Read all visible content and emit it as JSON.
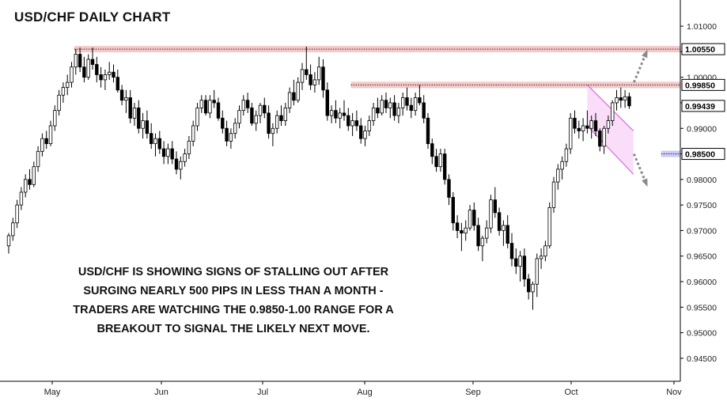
{
  "chart_data": {
    "type": "candlestick",
    "title": "USD/CHF DAILY CHART",
    "x_tick_labels": [
      "May",
      "Jun",
      "Jul",
      "Aug",
      "Sep",
      "Oct",
      "Nov"
    ],
    "y_tick_labels": [
      "0.94500",
      "0.95000",
      "0.95500",
      "0.96000",
      "0.96500",
      "0.97000",
      "0.97500",
      "0.98000",
      "0.98500",
      "0.99000",
      "0.99500",
      "1.00000",
      "1.00500",
      "1.01000"
    ],
    "ylim": [
      0.9405,
      1.0145
    ],
    "grid": false,
    "price_labels": [
      {
        "value": 1.0055,
        "label": "1.00550",
        "style": "resistance"
      },
      {
        "value": 0.9985,
        "label": "0.99850",
        "style": "resistance"
      },
      {
        "value": 0.99439,
        "label": "0.99439",
        "style": "last"
      },
      {
        "value": 0.985,
        "label": "0.98500",
        "style": "support"
      }
    ],
    "horizontal_zones": [
      {
        "value": 1.0055,
        "color": "#f2b6b6",
        "start_bar": 16
      },
      {
        "value": 0.9985,
        "color": "#f2b6b6",
        "start_bar": 82
      },
      {
        "value": 0.985,
        "color": "#b8b8f5",
        "start_bar": 156
      }
    ],
    "ohlc": [
      [
        0.967,
        0.9695,
        0.9655,
        0.969
      ],
      [
        0.969,
        0.9725,
        0.968,
        0.9715
      ],
      [
        0.9715,
        0.976,
        0.9705,
        0.975
      ],
      [
        0.975,
        0.9785,
        0.974,
        0.9775
      ],
      [
        0.9775,
        0.981,
        0.9765,
        0.98
      ],
      [
        0.98,
        0.982,
        0.978,
        0.979
      ],
      [
        0.979,
        0.9835,
        0.9785,
        0.9825
      ],
      [
        0.9825,
        0.9865,
        0.9815,
        0.9855
      ],
      [
        0.9855,
        0.989,
        0.9845,
        0.988
      ],
      [
        0.988,
        0.9895,
        0.986,
        0.987
      ],
      [
        0.987,
        0.9915,
        0.9865,
        0.9905
      ],
      [
        0.9905,
        0.9945,
        0.9895,
        0.9935
      ],
      [
        0.9935,
        0.9975,
        0.9925,
        0.9965
      ],
      [
        0.9965,
        0.999,
        0.995,
        0.998
      ],
      [
        0.998,
        1.0005,
        0.9965,
        0.999
      ],
      [
        0.999,
        1.003,
        0.998,
        1.002
      ],
      [
        1.002,
        1.0055,
        1.0005,
        1.0045
      ],
      [
        1.0045,
        1.0058,
        1.001,
        1.002
      ],
      [
        1.002,
        1.004,
        0.999,
        1.0
      ],
      [
        1.0,
        1.0045,
        0.9995,
        1.0035
      ],
      [
        1.0035,
        1.0058,
        1.0015,
        1.0025
      ],
      [
        1.0025,
        1.004,
        0.999,
        1.0005
      ],
      [
        1.0005,
        1.002,
        0.998,
        0.9995
      ],
      [
        0.9995,
        1.0015,
        0.9975,
        1.0005
      ],
      [
        1.0005,
        1.003,
        0.9995,
        1.001
      ],
      [
        1.001,
        1.0025,
        0.999,
        1.0
      ],
      [
        1.0,
        1.0015,
        0.997,
        0.9975
      ],
      [
        0.9975,
        0.9985,
        0.9945,
        0.9955
      ],
      [
        0.9955,
        0.9975,
        0.993,
        0.996
      ],
      [
        0.996,
        0.9975,
        0.991,
        0.992
      ],
      [
        0.992,
        0.995,
        0.9905,
        0.994
      ],
      [
        0.994,
        0.9955,
        0.989,
        0.99
      ],
      [
        0.99,
        0.993,
        0.988,
        0.9915
      ],
      [
        0.9915,
        0.9935,
        0.988,
        0.989
      ],
      [
        0.989,
        0.991,
        0.986,
        0.987
      ],
      [
        0.987,
        0.989,
        0.9845,
        0.988
      ],
      [
        0.988,
        0.9895,
        0.985,
        0.986
      ],
      [
        0.986,
        0.9875,
        0.983,
        0.9845
      ],
      [
        0.9845,
        0.987,
        0.983,
        0.986
      ],
      [
        0.986,
        0.9875,
        0.983,
        0.984
      ],
      [
        0.984,
        0.9855,
        0.981,
        0.982
      ],
      [
        0.982,
        0.9845,
        0.98,
        0.9835
      ],
      [
        0.9835,
        0.986,
        0.9825,
        0.985
      ],
      [
        0.985,
        0.9885,
        0.984,
        0.9875
      ],
      [
        0.9875,
        0.9915,
        0.9865,
        0.9905
      ],
      [
        0.9905,
        0.995,
        0.9895,
        0.994
      ],
      [
        0.994,
        0.9965,
        0.993,
        0.9955
      ],
      [
        0.9955,
        0.9965,
        0.9925,
        0.993
      ],
      [
        0.993,
        0.9965,
        0.992,
        0.9955
      ],
      [
        0.9955,
        0.9975,
        0.994,
        0.995
      ],
      [
        0.995,
        0.996,
        0.9915,
        0.992
      ],
      [
        0.992,
        0.9935,
        0.989,
        0.99
      ],
      [
        0.99,
        0.9915,
        0.9865,
        0.9875
      ],
      [
        0.9875,
        0.99,
        0.986,
        0.989
      ],
      [
        0.989,
        0.992,
        0.988,
        0.991
      ],
      [
        0.991,
        0.9945,
        0.99,
        0.9935
      ],
      [
        0.9935,
        0.9965,
        0.9925,
        0.9955
      ],
      [
        0.9955,
        0.997,
        0.993,
        0.994
      ],
      [
        0.994,
        0.995,
        0.9905,
        0.991
      ],
      [
        0.991,
        0.9935,
        0.9895,
        0.9925
      ],
      [
        0.9925,
        0.995,
        0.991,
        0.9945
      ],
      [
        0.9945,
        0.996,
        0.992,
        0.993
      ],
      [
        0.993,
        0.9945,
        0.988,
        0.989
      ],
      [
        0.989,
        0.991,
        0.9865,
        0.99
      ],
      [
        0.99,
        0.9935,
        0.989,
        0.9925
      ],
      [
        0.9925,
        0.9945,
        0.9905,
        0.9915
      ],
      [
        0.9915,
        0.995,
        0.9905,
        0.994
      ],
      [
        0.994,
        0.998,
        0.993,
        0.997
      ],
      [
        0.997,
        0.9995,
        0.9945,
        0.9955
      ],
      [
        0.9955,
        1.0,
        0.995,
        0.999
      ],
      [
        0.999,
        1.0028,
        0.9975,
        1.0015
      ],
      [
        1.0015,
        1.006,
        0.9995,
        1.0005
      ],
      [
        1.0005,
        1.0025,
        0.9975,
        0.9985
      ],
      [
        0.9985,
        1.001,
        0.997,
        0.9995
      ],
      [
        0.9995,
        1.004,
        0.9985,
        1.002
      ],
      [
        1.002,
        1.0035,
        0.996,
        0.9975
      ],
      [
        0.9975,
        0.999,
        0.9915,
        0.9925
      ],
      [
        0.9925,
        0.9945,
        0.991,
        0.9935
      ],
      [
        0.9935,
        0.9955,
        0.991,
        0.992
      ],
      [
        0.992,
        0.994,
        0.99,
        0.993
      ],
      [
        0.993,
        0.9955,
        0.9915,
        0.9925
      ],
      [
        0.9925,
        0.994,
        0.9895,
        0.9905
      ],
      [
        0.9905,
        0.993,
        0.9885,
        0.9915
      ],
      [
        0.9915,
        0.9935,
        0.9895,
        0.9905
      ],
      [
        0.9905,
        0.992,
        0.987,
        0.988
      ],
      [
        0.988,
        0.9905,
        0.9865,
        0.9895
      ],
      [
        0.9895,
        0.9925,
        0.9885,
        0.9915
      ],
      [
        0.9915,
        0.995,
        0.9905,
        0.994
      ],
      [
        0.994,
        0.996,
        0.992,
        0.993
      ],
      [
        0.993,
        0.9965,
        0.9925,
        0.9955
      ],
      [
        0.9955,
        0.997,
        0.993,
        0.994
      ],
      [
        0.994,
        0.996,
        0.992,
        0.995
      ],
      [
        0.995,
        0.9965,
        0.9915,
        0.9925
      ],
      [
        0.9925,
        0.995,
        0.991,
        0.994
      ],
      [
        0.994,
        0.997,
        0.9925,
        0.996
      ],
      [
        0.996,
        0.998,
        0.9935,
        0.9945
      ],
      [
        0.9945,
        0.996,
        0.992,
        0.9935
      ],
      [
        0.9935,
        0.997,
        0.9925,
        0.996
      ],
      [
        0.996,
        0.9985,
        0.9945,
        0.995
      ],
      [
        0.995,
        0.9965,
        0.991,
        0.992
      ],
      [
        0.992,
        0.993,
        0.986,
        0.987
      ],
      [
        0.987,
        0.988,
        0.983,
        0.9845
      ],
      [
        0.9845,
        0.986,
        0.9815,
        0.9825
      ],
      [
        0.9825,
        0.986,
        0.9815,
        0.985
      ],
      [
        0.985,
        0.986,
        0.979,
        0.98
      ],
      [
        0.98,
        0.981,
        0.975,
        0.9765
      ],
      [
        0.9765,
        0.9775,
        0.97,
        0.9715
      ],
      [
        0.9715,
        0.973,
        0.9685,
        0.97
      ],
      [
        0.97,
        0.9715,
        0.966,
        0.9695
      ],
      [
        0.9695,
        0.972,
        0.968,
        0.9705
      ],
      [
        0.9705,
        0.975,
        0.97,
        0.974
      ],
      [
        0.974,
        0.9755,
        0.97,
        0.971
      ],
      [
        0.971,
        0.9725,
        0.966,
        0.967
      ],
      [
        0.967,
        0.969,
        0.964,
        0.9685
      ],
      [
        0.9685,
        0.972,
        0.9675,
        0.9705
      ],
      [
        0.9705,
        0.977,
        0.9695,
        0.976
      ],
      [
        0.976,
        0.9785,
        0.9725,
        0.9735
      ],
      [
        0.9735,
        0.9745,
        0.969,
        0.97
      ],
      [
        0.97,
        0.972,
        0.967,
        0.971
      ],
      [
        0.971,
        0.973,
        0.9665,
        0.9675
      ],
      [
        0.9675,
        0.9695,
        0.963,
        0.9645
      ],
      [
        0.9645,
        0.9665,
        0.9615,
        0.963
      ],
      [
        0.963,
        0.966,
        0.96,
        0.965
      ],
      [
        0.965,
        0.9665,
        0.959,
        0.9605
      ],
      [
        0.9605,
        0.9615,
        0.9565,
        0.958
      ],
      [
        0.958,
        0.96,
        0.9545,
        0.9595
      ],
      [
        0.9595,
        0.9655,
        0.957,
        0.9645
      ],
      [
        0.9645,
        0.9665,
        0.9625,
        0.965
      ],
      [
        0.965,
        0.968,
        0.964,
        0.967
      ],
      [
        0.967,
        0.9755,
        0.9665,
        0.9745
      ],
      [
        0.9745,
        0.9805,
        0.9735,
        0.9795
      ],
      [
        0.9795,
        0.983,
        0.978,
        0.982
      ],
      [
        0.982,
        0.9845,
        0.98,
        0.9835
      ],
      [
        0.9835,
        0.987,
        0.9825,
        0.986
      ],
      [
        0.986,
        0.993,
        0.985,
        0.992
      ],
      [
        0.992,
        0.9935,
        0.989,
        0.99
      ],
      [
        0.99,
        0.9915,
        0.988,
        0.9895
      ],
      [
        0.9895,
        0.992,
        0.9875,
        0.9905
      ],
      [
        0.9905,
        0.9935,
        0.989,
        0.99
      ],
      [
        0.99,
        0.9925,
        0.988,
        0.9915
      ],
      [
        0.9915,
        0.993,
        0.9885,
        0.9895
      ],
      [
        0.9895,
        0.99,
        0.9855,
        0.9865
      ],
      [
        0.9865,
        0.9905,
        0.985,
        0.99
      ],
      [
        0.99,
        0.9925,
        0.989,
        0.9915
      ],
      [
        0.9915,
        0.9955,
        0.9905,
        0.995
      ],
      [
        0.995,
        0.9975,
        0.9935,
        0.996
      ],
      [
        0.996,
        0.998,
        0.994,
        0.9955
      ],
      [
        0.9955,
        0.9975,
        0.994,
        0.9962
      ],
      [
        0.9962,
        0.997,
        0.9938,
        0.9944
      ]
    ],
    "channel": {
      "color": "#d86cd8",
      "fill": "#f7d4f7",
      "upper_start": {
        "bar": 138,
        "value": 0.9985
      },
      "upper_end": {
        "bar": 149,
        "value": 0.9895
      },
      "lower_start": {
        "bar": 138,
        "value": 0.9905
      },
      "lower_end": {
        "bar": 149,
        "value": 0.981
      }
    },
    "arrows": [
      {
        "direction": "up",
        "from_value": 0.999,
        "to_value": 1.005,
        "color": "#8a8a8a"
      },
      {
        "direction": "down",
        "from_value": 0.985,
        "to_value": 0.979,
        "color": "#8a8a8a"
      }
    ]
  },
  "annotation_lines": [
    "USD/CHF IS SHOWING SIGNS OF STALLING OUT AFTER",
    "SURGING NEARLY 500 PIPS IN LESS THAN A MONTH -",
    "TRADERS ARE WATCHING THE 0.9850-1.00 RANGE FOR A",
    "BREAKOUT TO SIGNAL THE LIKELY NEXT MOVE."
  ]
}
